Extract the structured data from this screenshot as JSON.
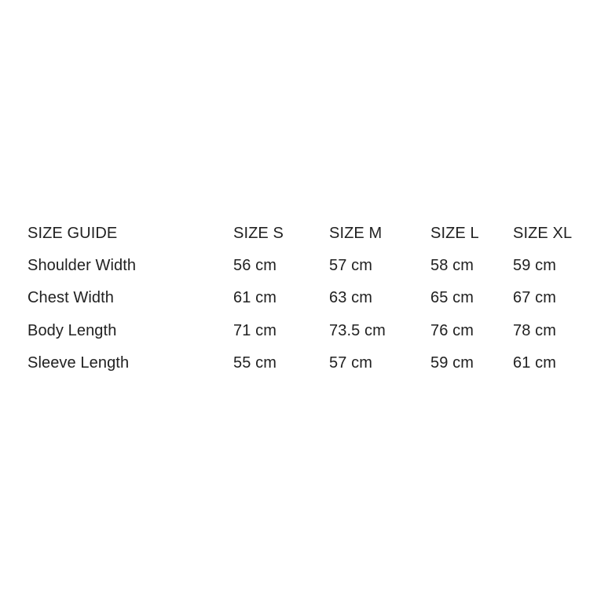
{
  "size_guide": {
    "text_color": "#212121",
    "background_color": "#ffffff",
    "header": {
      "title": "SIZE GUIDE",
      "columns": [
        "SIZE S",
        "SIZE M",
        "SIZE L",
        "SIZE XL"
      ]
    },
    "rows": [
      {
        "label": "Shoulder Width",
        "values": [
          "56 cm",
          "57 cm",
          "58 cm",
          "59 cm"
        ]
      },
      {
        "label": "Chest Width",
        "values": [
          "61 cm",
          "63 cm",
          "65 cm",
          "67 cm"
        ]
      },
      {
        "label": "Body Length",
        "values": [
          "71 cm",
          "73.5 cm",
          "76 cm",
          "78 cm"
        ]
      },
      {
        "label": "Sleeve Length",
        "values": [
          "55 cm",
          "57 cm",
          "59 cm",
          "61 cm"
        ]
      }
    ]
  }
}
